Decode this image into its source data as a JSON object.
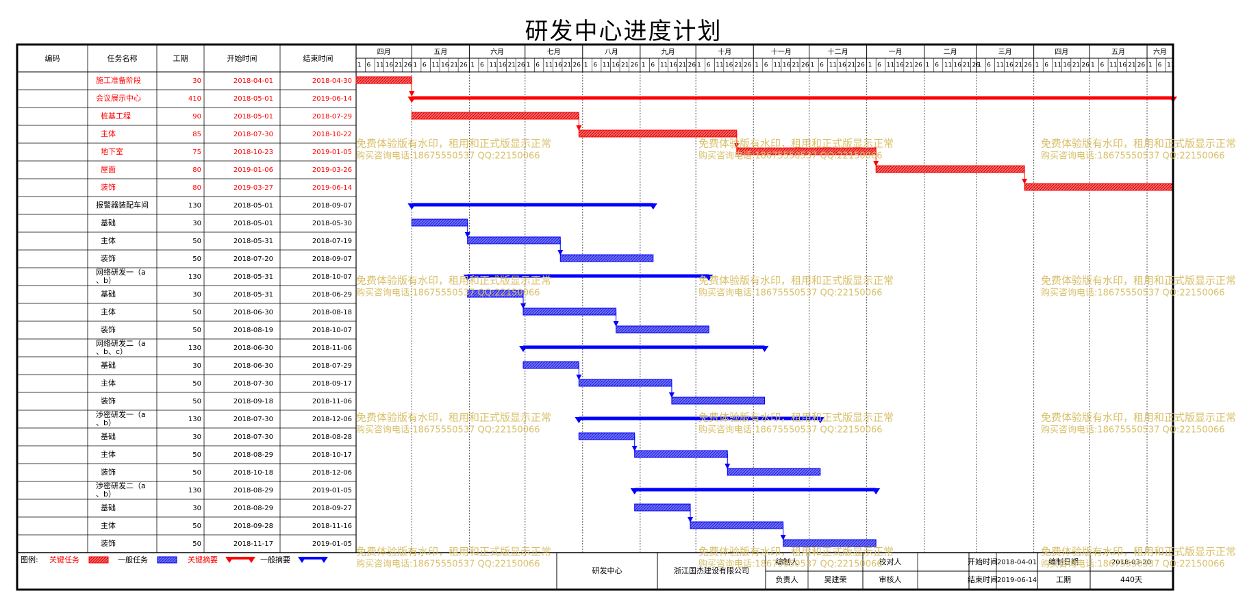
{
  "title": "研发中心进度计划",
  "colors": {
    "critical": "#ff0000",
    "critical_bar": "#ff6666",
    "general": "#0000ff",
    "general_bar": "#6f6fff",
    "watermark": "#d9c06a"
  },
  "table_headers": {
    "code": "编码",
    "name": "任务名称",
    "duration": "工期",
    "start": "开始时间",
    "end": "结束时间"
  },
  "timeline": {
    "months": [
      "四月",
      "五月",
      "六月",
      "七月",
      "八月",
      "九月",
      "十月",
      "十一月",
      "十二月",
      "一月",
      "二月",
      "三月",
      "四月",
      "五月",
      "六月"
    ],
    "day_ticks": [
      "1",
      "6",
      "11",
      "16",
      "21",
      "26"
    ]
  },
  "chart_data": {
    "type": "gantt",
    "title": "研发中心进度计划",
    "x_range": [
      "2018-04-01",
      "2019-06-14"
    ],
    "tasks": [
      {
        "name": "施工准备阶段",
        "duration": "30",
        "start": "2018-04-01",
        "end": "2018-04-30",
        "critical": true,
        "summary": false,
        "indent": 0
      },
      {
        "name": "会议展示中心",
        "duration": "410",
        "start": "2018-05-01",
        "end": "2019-06-14",
        "critical": true,
        "summary": true,
        "indent": 0
      },
      {
        "name": "桩基工程",
        "duration": "90",
        "start": "2018-05-01",
        "end": "2018-07-29",
        "critical": true,
        "summary": false,
        "indent": 1
      },
      {
        "name": "主体",
        "duration": "85",
        "start": "2018-07-30",
        "end": "2018-10-22",
        "critical": true,
        "summary": false,
        "indent": 1
      },
      {
        "name": "地下室",
        "duration": "75",
        "start": "2018-10-23",
        "end": "2019-01-05",
        "critical": true,
        "summary": false,
        "indent": 1
      },
      {
        "name": "屋面",
        "duration": "80",
        "start": "2019-01-06",
        "end": "2019-03-26",
        "critical": true,
        "summary": false,
        "indent": 1
      },
      {
        "name": "装饰",
        "duration": "80",
        "start": "2019-03-27",
        "end": "2019-06-14",
        "critical": true,
        "summary": false,
        "indent": 1
      },
      {
        "name": "报警器装配车间",
        "duration": "130",
        "start": "2018-05-01",
        "end": "2018-09-07",
        "critical": false,
        "summary": true,
        "indent": 0
      },
      {
        "name": "基础",
        "duration": "30",
        "start": "2018-05-01",
        "end": "2018-05-30",
        "critical": false,
        "summary": false,
        "indent": 1
      },
      {
        "name": "主体",
        "duration": "50",
        "start": "2018-05-31",
        "end": "2018-07-19",
        "critical": false,
        "summary": false,
        "indent": 1
      },
      {
        "name": "装饰",
        "duration": "50",
        "start": "2018-07-20",
        "end": "2018-09-07",
        "critical": false,
        "summary": false,
        "indent": 1
      },
      {
        "name": "网络研发一（a、b）",
        "name_lines": [
          "网络研发一（a",
          "、b）"
        ],
        "duration": "130",
        "start": "2018-05-31",
        "end": "2018-10-07",
        "critical": false,
        "summary": true,
        "indent": 0
      },
      {
        "name": "基础",
        "duration": "30",
        "start": "2018-05-31",
        "end": "2018-06-29",
        "critical": false,
        "summary": false,
        "indent": 1
      },
      {
        "name": "主体",
        "duration": "50",
        "start": "2018-06-30",
        "end": "2018-08-18",
        "critical": false,
        "summary": false,
        "indent": 1
      },
      {
        "name": "装饰",
        "duration": "50",
        "start": "2018-08-19",
        "end": "2018-10-07",
        "critical": false,
        "summary": false,
        "indent": 1
      },
      {
        "name": "网络研发二（a、b、c）",
        "name_lines": [
          "网络研发二（a",
          "、b、c）"
        ],
        "duration": "130",
        "start": "2018-06-30",
        "end": "2018-11-06",
        "critical": false,
        "summary": true,
        "indent": 0
      },
      {
        "name": "基础",
        "duration": "30",
        "start": "2018-06-30",
        "end": "2018-07-29",
        "critical": false,
        "summary": false,
        "indent": 1
      },
      {
        "name": "主体",
        "duration": "50",
        "start": "2018-07-30",
        "end": "2018-09-17",
        "critical": false,
        "summary": false,
        "indent": 1
      },
      {
        "name": "装饰",
        "duration": "50",
        "start": "2018-09-18",
        "end": "2018-11-06",
        "critical": false,
        "summary": false,
        "indent": 1
      },
      {
        "name": "涉密研发一（a、b）",
        "name_lines": [
          "涉密研发一（a",
          "、b）"
        ],
        "duration": "130",
        "start": "2018-07-30",
        "end": "2018-12-06",
        "critical": false,
        "summary": true,
        "indent": 0
      },
      {
        "name": "基础",
        "duration": "30",
        "start": "2018-07-30",
        "end": "2018-08-28",
        "critical": false,
        "summary": false,
        "indent": 1
      },
      {
        "name": "主体",
        "duration": "50",
        "start": "2018-08-29",
        "end": "2018-10-17",
        "critical": false,
        "summary": false,
        "indent": 1
      },
      {
        "name": "装饰",
        "duration": "50",
        "start": "2018-10-18",
        "end": "2018-12-06",
        "critical": false,
        "summary": false,
        "indent": 1
      },
      {
        "name": "涉密研发二（a、b）",
        "name_lines": [
          "涉密研发二（a",
          "、b）"
        ],
        "duration": "130",
        "start": "2018-08-29",
        "end": "2019-01-05",
        "critical": false,
        "summary": true,
        "indent": 0
      },
      {
        "name": "基础",
        "duration": "30",
        "start": "2018-08-29",
        "end": "2018-09-27",
        "critical": false,
        "summary": false,
        "indent": 1
      },
      {
        "name": "主体",
        "duration": "50",
        "start": "2018-09-28",
        "end": "2018-11-16",
        "critical": false,
        "summary": false,
        "indent": 1
      },
      {
        "name": "装饰",
        "duration": "50",
        "start": "2018-11-17",
        "end": "2019-01-05",
        "critical": false,
        "summary": false,
        "indent": 1
      }
    ],
    "dependencies": [
      [
        0,
        1
      ],
      [
        2,
        3
      ],
      [
        3,
        4
      ],
      [
        4,
        5
      ],
      [
        5,
        6
      ],
      [
        8,
        9
      ],
      [
        9,
        10
      ],
      [
        12,
        13
      ],
      [
        13,
        14
      ],
      [
        16,
        17
      ],
      [
        17,
        18
      ],
      [
        20,
        21
      ],
      [
        21,
        22
      ],
      [
        24,
        25
      ],
      [
        25,
        26
      ]
    ]
  },
  "legend": {
    "label": "图例:",
    "items": [
      {
        "text": "关键任务",
        "kind": "critical-task"
      },
      {
        "text": "一般任务",
        "kind": "general-task"
      },
      {
        "text": "关键摘要",
        "kind": "critical-summary"
      },
      {
        "text": "一般摘要",
        "kind": "general-summary"
      }
    ]
  },
  "footer": {
    "project": "研发中心",
    "company": "浙江国杰建设有限公司",
    "compiled_by_label": "编制人",
    "checked_by_label": "校对人",
    "responsible_label": "负责人",
    "responsible_value": "吴建荣",
    "reviewer_label": "审核人",
    "start_label": "开始时间",
    "start_value": "2018-04-01",
    "compile_date_label": "编制日期",
    "compile_date_value": "2018-03-20",
    "end_label": "结束时间",
    "end_value": "2019-06-14",
    "duration_label": "工期",
    "duration_value": "440天"
  },
  "watermark": {
    "line1": "免费体验版有水印，租用和正式版显示正常",
    "line2": "购买咨询电话:18675550537 QQ:22150066"
  }
}
